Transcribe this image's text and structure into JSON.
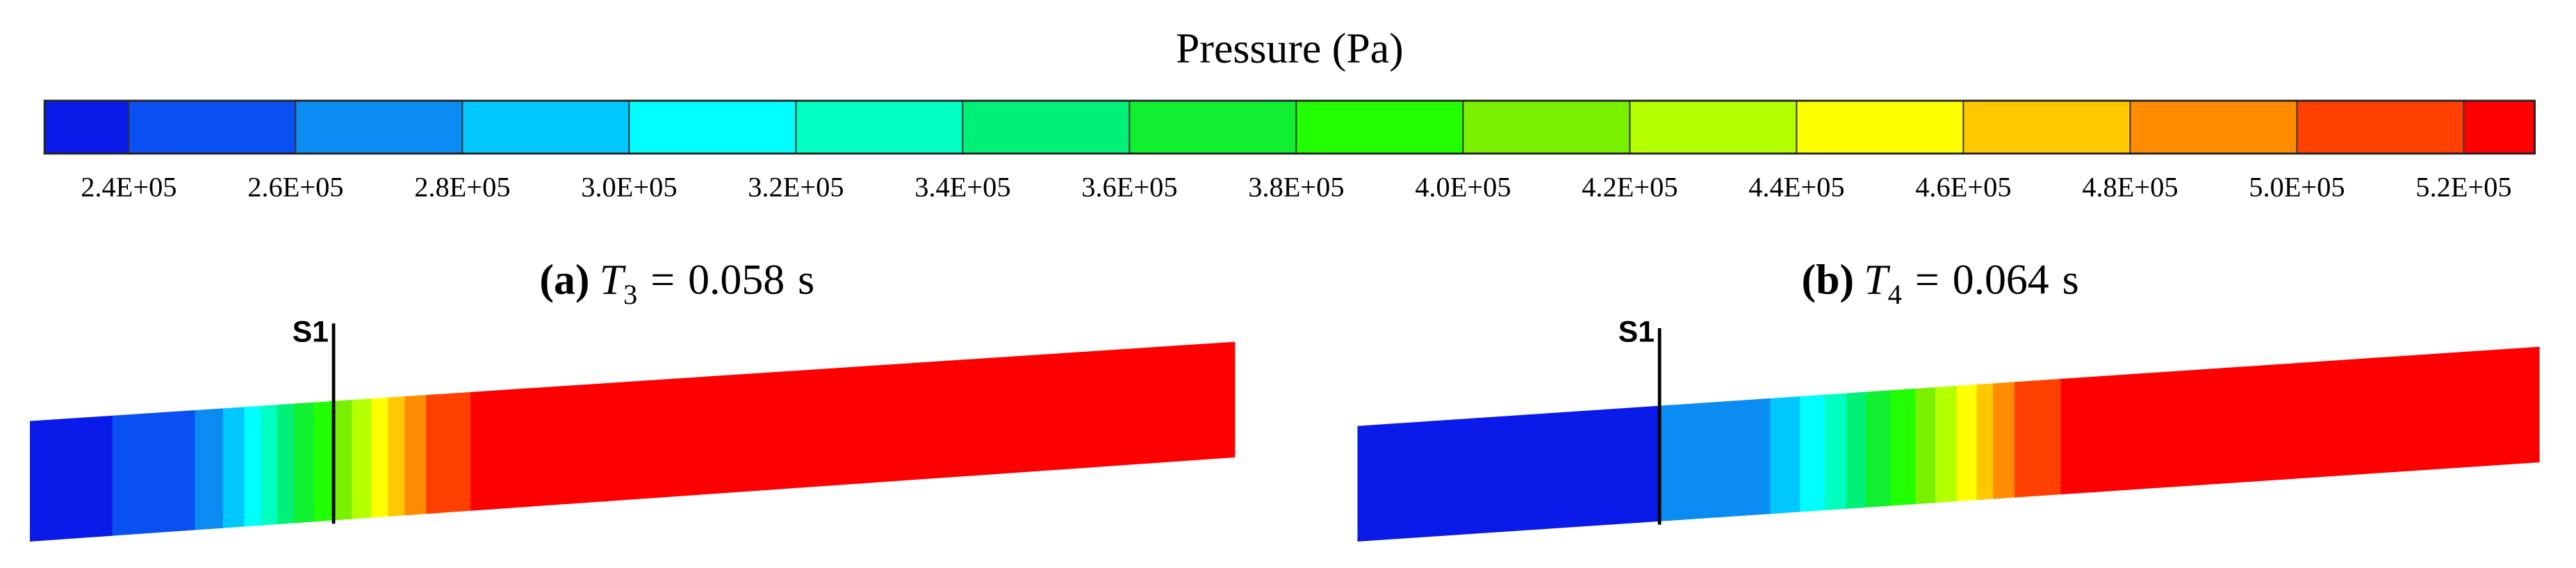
{
  "colorbar": {
    "title": "Pressure (Pa)",
    "ticks": [
      "2.4E+05",
      "2.6E+05",
      "2.8E+05",
      "3.0E+05",
      "3.2E+05",
      "3.4E+05",
      "3.6E+05",
      "3.8E+05",
      "4.0E+05",
      "4.2E+05",
      "4.4E+05",
      "4.6E+05",
      "4.8E+05",
      "5.0E+05",
      "5.2E+05"
    ],
    "colors": [
      "#0a1ae8",
      "#0a50f2",
      "#0a8cf2",
      "#00c8ff",
      "#00ffff",
      "#00ffc0",
      "#00f078",
      "#10f030",
      "#22ff00",
      "#78f000",
      "#b4ff00",
      "#ffff00",
      "#ffc800",
      "#ff8c00",
      "#ff4000",
      "#ff0000"
    ]
  },
  "panels": [
    {
      "tag": "(a)",
      "variable": "T",
      "subscript": "3",
      "equals": "=",
      "value": "0.058",
      "unit": "s",
      "section": "S1"
    },
    {
      "tag": "(b)",
      "variable": "T",
      "subscript": "4",
      "equals": "=",
      "value": "0.064",
      "unit": "s",
      "section": "S1"
    }
  ]
}
